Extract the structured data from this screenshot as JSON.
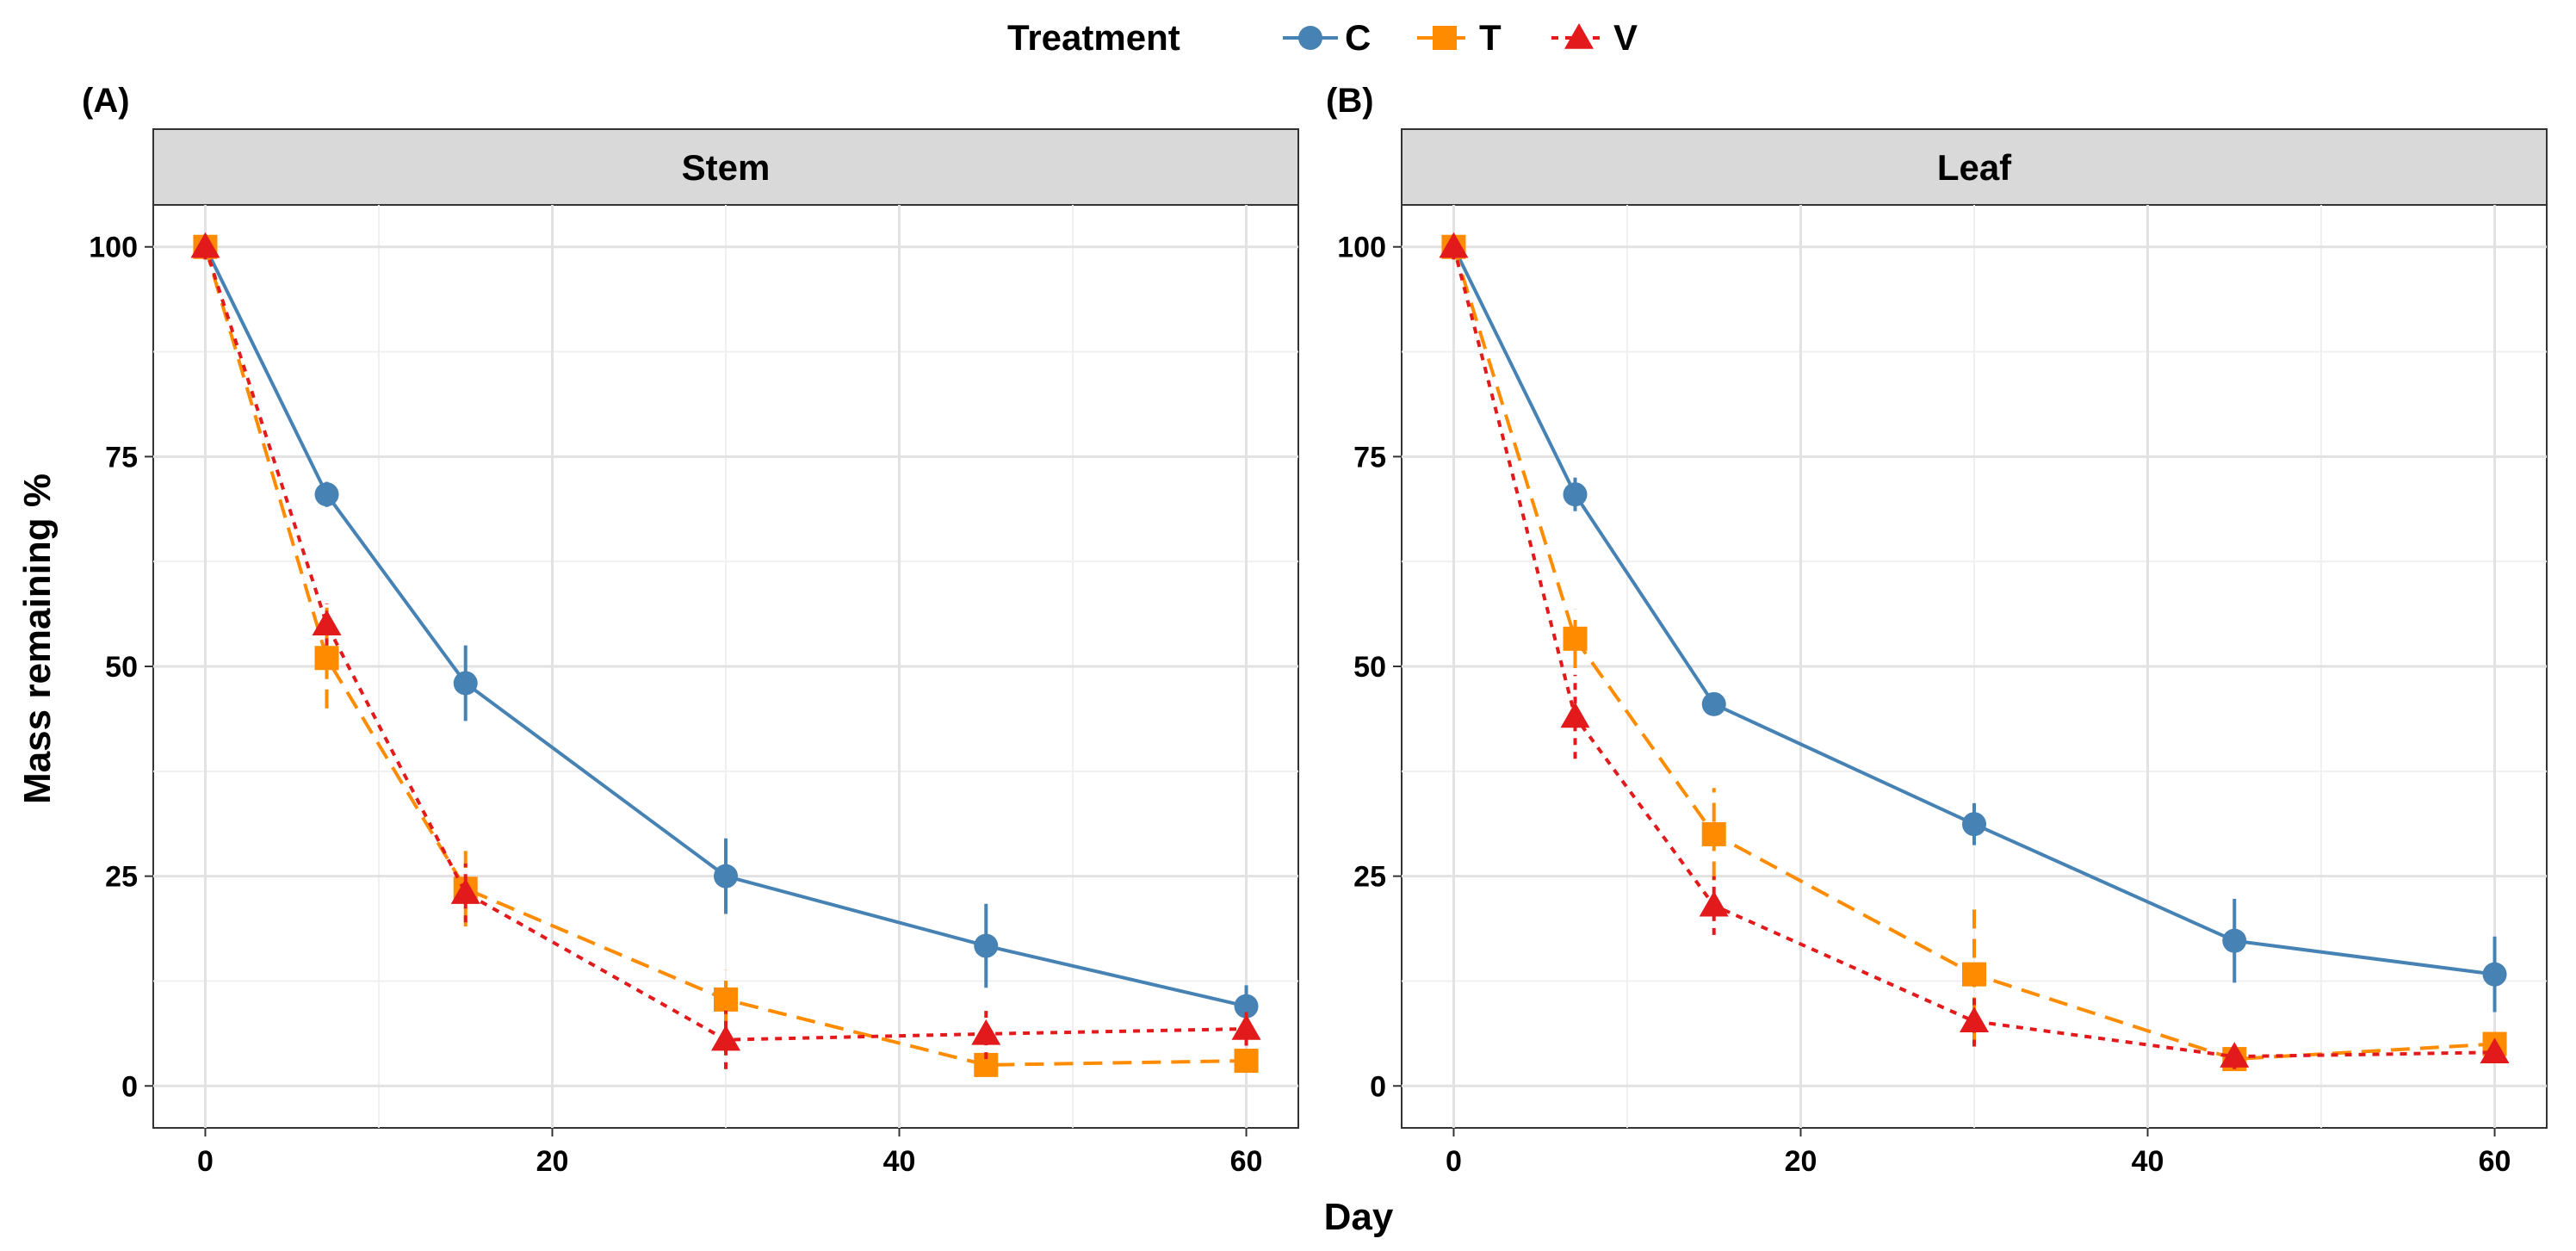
{
  "legend": {
    "title": "Treatment",
    "entries": [
      {
        "key": "C",
        "label": "C",
        "color": "#4682b4",
        "marker": "circle",
        "dash": "solid"
      },
      {
        "key": "T",
        "label": "T",
        "color": "#ff8c00",
        "marker": "square",
        "dash": "dashed"
      },
      {
        "key": "V",
        "label": "V",
        "color": "#e31a1c",
        "marker": "triangle",
        "dash": "dotted"
      }
    ]
  },
  "axes": {
    "xlabel": "Day",
    "ylabel": "Mass remaining %",
    "xlim": [
      -3,
      63
    ],
    "ylim": [
      -5,
      105
    ],
    "xticks": [
      0,
      20,
      40,
      60
    ],
    "xtick_labels": [
      "0",
      "20",
      "40",
      "60"
    ],
    "yticks": [
      0,
      25,
      50,
      75,
      100
    ],
    "ytick_labels": [
      "0",
      "25",
      "50",
      "75",
      "100"
    ],
    "xminor": [
      10,
      30,
      50
    ],
    "yminor": [
      12.5,
      37.5,
      62.5,
      87.5
    ]
  },
  "chart_data": [
    {
      "type": "line",
      "tag": "(A)",
      "title": "Stem",
      "x": [
        0,
        7,
        15,
        30,
        45,
        60
      ],
      "series": [
        {
          "name": "C",
          "values": [
            100,
            70.5,
            48,
            25,
            16.7,
            9.5
          ],
          "errors": [
            1.5,
            1.5,
            4.5,
            4.5,
            5,
            2.5
          ]
        },
        {
          "name": "T",
          "values": [
            100,
            51,
            23.5,
            10.3,
            2.5,
            3
          ],
          "errors": [
            1,
            6,
            4.5,
            3.5,
            1,
            1
          ]
        },
        {
          "name": "V",
          "values": [
            100,
            55,
            23,
            5.5,
            6.2,
            6.8
          ],
          "errors": [
            1.5,
            2.5,
            3.5,
            3.5,
            3,
            2
          ]
        }
      ]
    },
    {
      "type": "line",
      "tag": "(B)",
      "title": "Leaf",
      "x": [
        0,
        7,
        15,
        30,
        45,
        60
      ],
      "series": [
        {
          "name": "C",
          "values": [
            100,
            70.5,
            45.5,
            31.2,
            17.3,
            13.3
          ],
          "errors": [
            1.5,
            2,
            1,
            2.5,
            5,
            4.5
          ]
        },
        {
          "name": "T",
          "values": [
            100,
            53.3,
            30,
            13.3,
            3.2,
            5
          ],
          "errors": [
            1,
            3.5,
            5.5,
            8.5,
            1,
            1
          ]
        },
        {
          "name": "V",
          "values": [
            100,
            44,
            21.5,
            7.7,
            3.5,
            4
          ],
          "errors": [
            1.5,
            5,
            3.5,
            3,
            1.5,
            1
          ]
        }
      ]
    }
  ]
}
